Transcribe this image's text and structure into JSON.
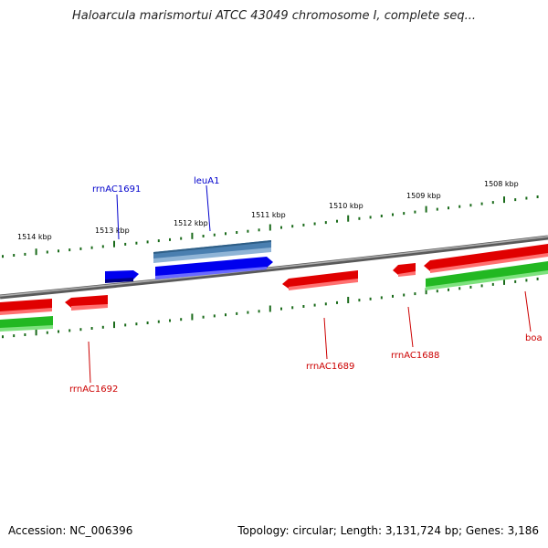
{
  "title": "Haloarcula marismortui ATCC 43049 chromosome I, complete seq...",
  "footer": {
    "accession": "Accession: NC_006396",
    "stats": "Topology: circular; Length: 3,131,724 bp; Genes: 3,186"
  },
  "ticks": [
    "1514 kbp",
    "1513 kbp",
    "1512 kbp",
    "1511 kbp",
    "1510 kbp",
    "1509 kbp",
    "1508 kbp"
  ],
  "genes": {
    "rrnAC1691": "rrnAC1691",
    "leuA1": "leuA1",
    "rrnAC1692": "rrnAC1692",
    "rrnAC1689": "rrnAC1689",
    "rrnAC1688": "rrnAC1688",
    "boa": "boa"
  },
  "colors": {
    "backbone": "#808080",
    "cds_red": "#e00000",
    "cds_green": "#22b822",
    "cds_blue": "#0000ee",
    "cds_steelblue": "#4a7fb0",
    "tick": "#1a6b1a",
    "label_blue": "#0000cc",
    "label_red": "#cc0000"
  }
}
